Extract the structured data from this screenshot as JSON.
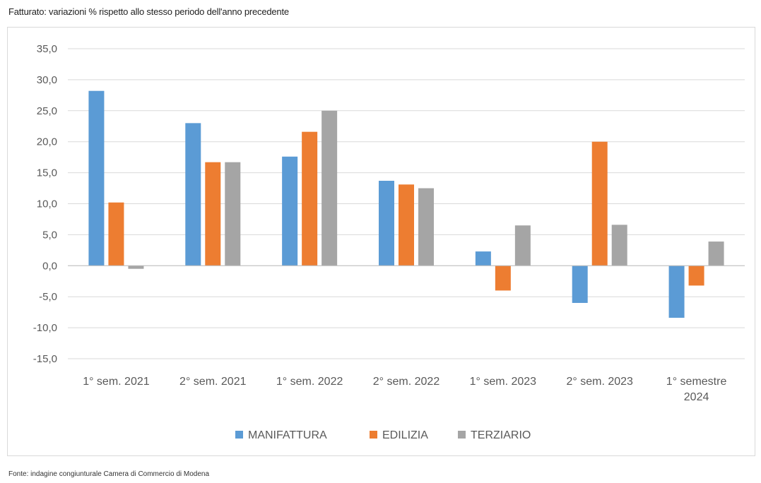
{
  "title": "Fatturato: variazioni % rispetto allo stesso periodo dell'anno precedente",
  "source": "Fonte: indagine congiunturale Camera di Commercio di Modena",
  "colors": {
    "manifattura": "#5B9BD5",
    "edilizia": "#ED7D31",
    "terziario": "#A5A5A5",
    "gridline": "#d9d9d9",
    "axis_text": "#595959"
  },
  "chart_data": {
    "type": "bar",
    "categories": [
      [
        "1° sem. 2021"
      ],
      [
        "2° sem. 2021"
      ],
      [
        "1° sem. 2022"
      ],
      [
        "2° sem. 2022"
      ],
      [
        "1° sem. 2023"
      ],
      [
        "2° sem. 2023"
      ],
      [
        "1° semestre",
        "2024"
      ]
    ],
    "series": [
      {
        "name": "MANIFATTURA",
        "color": "#5B9BD5",
        "values": [
          28.2,
          23.0,
          17.6,
          13.7,
          2.3,
          -6.0,
          -8.4
        ]
      },
      {
        "name": "EDILIZIA",
        "color": "#ED7D31",
        "values": [
          10.2,
          16.7,
          21.6,
          13.1,
          -4.0,
          20.0,
          -3.2
        ]
      },
      {
        "name": "TERZIARIO",
        "color": "#A5A5A5",
        "values": [
          -0.5,
          16.7,
          25.0,
          12.5,
          6.5,
          6.6,
          3.9
        ]
      }
    ],
    "ylim": [
      -15,
      35
    ],
    "yticks": [
      35,
      30,
      25,
      20,
      15,
      10,
      5,
      0,
      -5,
      -10,
      -15
    ],
    "ytick_labels": [
      "35,0",
      "30,0",
      "25,0",
      "20,0",
      "15,0",
      "10,0",
      "5,0",
      "0,0",
      "-5,0",
      "-10,0",
      "-15,0"
    ],
    "grid": true,
    "legend": "bottom",
    "xlabel": "",
    "ylabel": ""
  }
}
